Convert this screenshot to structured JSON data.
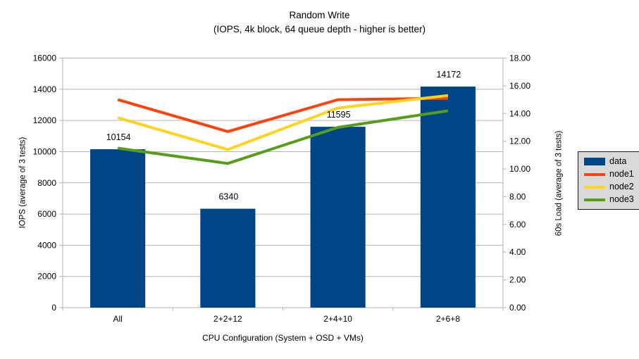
{
  "title": "Random Write",
  "subtitle": "(IOPS, 4k block, 64 queue depth - higher is better)",
  "colors": {
    "background": "#ffffff",
    "text": "#000000",
    "grid": "#b3b3b3",
    "axis": "#b3b3b3",
    "bar": "#004586",
    "node1": "#ff420e",
    "node2": "#ffd320",
    "node3": "#579d1c",
    "legend_bg": "#d9d9d9",
    "legend_border": "#1a1a1a"
  },
  "chart_data": {
    "type": "bar+line combo",
    "title": "Random Write",
    "subtitle": "(IOPS, 4k block, 64 queue depth - higher is better)",
    "xlabel": "CPU Configuration (System + OSD + VMs)",
    "categories": [
      "All",
      "2+2+12",
      "2+4+10",
      "2+6+8"
    ],
    "bar_series": {
      "name": "data",
      "axis": "left",
      "color": "#004586",
      "values": [
        10154,
        6340,
        11595,
        14172
      ],
      "data_labels": [
        "10154",
        "6340",
        "11595",
        "14172"
      ]
    },
    "line_series": [
      {
        "name": "node1",
        "axis": "right",
        "color": "#ff420e",
        "values": [
          15.0,
          12.7,
          15.0,
          15.1
        ]
      },
      {
        "name": "node2",
        "axis": "right",
        "color": "#ffd320",
        "values": [
          13.7,
          11.4,
          14.4,
          15.3
        ]
      },
      {
        "name": "node3",
        "axis": "right",
        "color": "#579d1c",
        "values": [
          11.5,
          10.4,
          13.0,
          14.2
        ]
      }
    ],
    "left_axis": {
      "label": "IOPS (average of 3 tests)",
      "min": 0,
      "max": 16000,
      "step": 2000,
      "decimals": 0
    },
    "right_axis": {
      "label": "60s Load (average of 3 tests)",
      "min": 0,
      "max": 18,
      "step": 2,
      "decimals": 2
    },
    "grid": "horizontal",
    "legend_position": "right"
  },
  "legend": {
    "items": [
      {
        "label": "data",
        "kind": "bar"
      },
      {
        "label": "node1",
        "kind": "line"
      },
      {
        "label": "node2",
        "kind": "line"
      },
      {
        "label": "node3",
        "kind": "line"
      }
    ]
  }
}
